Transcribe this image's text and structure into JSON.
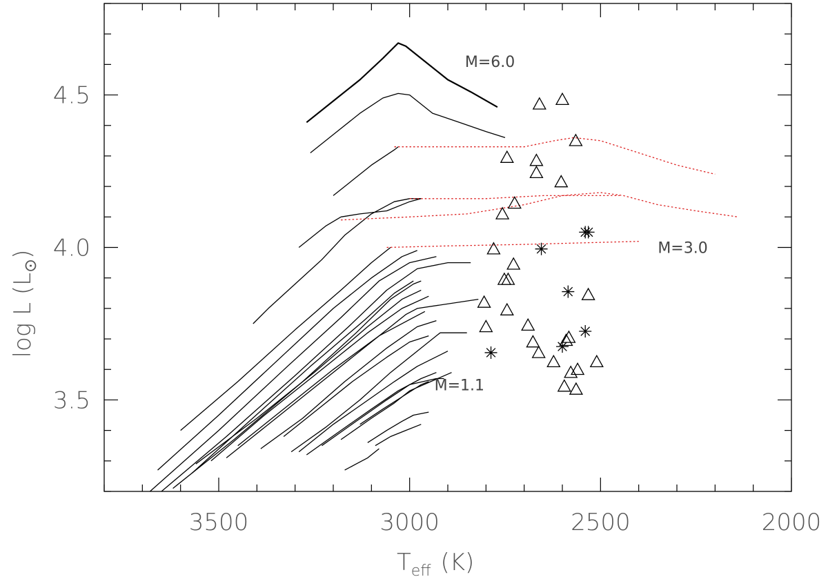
{
  "chart_data": {
    "type": "scatter",
    "title": "",
    "xlabel": "T",
    "xlabel_sub": "eff",
    "xlabel_unit": "(K)",
    "ylabel": "log L (L",
    "ylabel_sun": "⊙",
    "ylabel_close": ")",
    "xlim": [
      3800,
      2000
    ],
    "ylim": [
      3.2,
      4.8
    ],
    "x_ticks": [
      3500,
      3000,
      2500,
      2000
    ],
    "x_tick_labels": [
      "3500",
      "3000",
      "2500",
      "2000"
    ],
    "y_ticks": [
      3.5,
      4.0,
      4.5
    ],
    "y_tick_labels": [
      "3.5",
      "4.0",
      "4.5"
    ],
    "x_minor_step": 100,
    "y_minor_step": 0.1,
    "grid": false,
    "annotations": [
      {
        "text": "M=6.0",
        "x": 2855,
        "y": 4.61
      },
      {
        "text": "M=3.0",
        "x": 2350,
        "y": 4.0
      },
      {
        "text": "M=1.1",
        "x": 2935,
        "y": 3.55
      }
    ],
    "colors": {
      "tracks": "#000000",
      "tracks_extended": "#dd2222",
      "markers": "#000000"
    },
    "tracks": [
      {
        "points": [
          [
            3270,
            4.41
          ],
          [
            3200,
            4.48
          ],
          [
            3130,
            4.55
          ],
          [
            3070,
            4.62
          ],
          [
            3030,
            4.67
          ],
          [
            3010,
            4.66
          ],
          [
            2950,
            4.6
          ],
          [
            2900,
            4.55
          ],
          [
            2840,
            4.51
          ],
          [
            2770,
            4.46
          ]
        ],
        "width": 2.2
      },
      {
        "points": [
          [
            3260,
            4.31
          ],
          [
            3200,
            4.37
          ],
          [
            3130,
            4.44
          ],
          [
            3070,
            4.49
          ],
          [
            3030,
            4.505
          ],
          [
            3000,
            4.5
          ],
          [
            2940,
            4.44
          ],
          [
            2870,
            4.41
          ],
          [
            2800,
            4.38
          ],
          [
            2750,
            4.36
          ]
        ]
      },
      {
        "points": [
          [
            3200,
            4.17
          ],
          [
            3150,
            4.22
          ],
          [
            3100,
            4.27
          ],
          [
            3040,
            4.32
          ],
          [
            3030,
            4.33
          ]
        ]
      },
      {
        "points": [
          [
            3180,
            4.1
          ],
          [
            3130,
            4.11
          ],
          [
            3060,
            4.12
          ],
          [
            3000,
            4.15
          ],
          [
            2970,
            4.16
          ]
        ]
      },
      {
        "points": [
          [
            3290,
            4.0
          ],
          [
            3260,
            4.03
          ],
          [
            3220,
            4.07
          ],
          [
            3180,
            4.1
          ]
        ]
      },
      {
        "points": [
          [
            3410,
            3.75
          ],
          [
            3370,
            3.8
          ],
          [
            3300,
            3.88
          ],
          [
            3230,
            3.96
          ],
          [
            3170,
            4.04
          ],
          [
            3100,
            4.11
          ],
          [
            3040,
            4.15
          ],
          [
            3000,
            4.16
          ],
          [
            2970,
            4.16
          ]
        ]
      },
      {
        "points": [
          [
            3600,
            3.4
          ],
          [
            3450,
            3.56
          ],
          [
            3300,
            3.73
          ],
          [
            3180,
            3.86
          ],
          [
            3100,
            3.95
          ],
          [
            3050,
            4.0
          ]
        ]
      },
      {
        "points": [
          [
            3660,
            3.27
          ],
          [
            3500,
            3.45
          ],
          [
            3320,
            3.66
          ],
          [
            3200,
            3.8
          ],
          [
            3100,
            3.9
          ],
          [
            3020,
            3.97
          ],
          [
            2980,
            3.99
          ]
        ]
      },
      {
        "points": [
          [
            3680,
            3.2
          ],
          [
            3500,
            3.4
          ],
          [
            3320,
            3.61
          ],
          [
            3180,
            3.77
          ],
          [
            3080,
            3.89
          ],
          [
            3000,
            3.95
          ],
          [
            2930,
            3.97
          ]
        ]
      },
      {
        "points": [
          [
            3650,
            3.2
          ],
          [
            3480,
            3.38
          ],
          [
            3300,
            3.58
          ],
          [
            3160,
            3.74
          ],
          [
            3060,
            3.86
          ],
          [
            2980,
            3.93
          ],
          [
            2900,
            3.95
          ],
          [
            2840,
            3.95
          ]
        ]
      },
      {
        "points": [
          [
            3620,
            3.21
          ],
          [
            3460,
            3.37
          ],
          [
            3280,
            3.56
          ],
          [
            3140,
            3.72
          ],
          [
            3050,
            3.83
          ],
          [
            2990,
            3.88
          ],
          [
            2970,
            3.89
          ]
        ]
      },
      {
        "points": [
          [
            3570,
            3.26
          ],
          [
            3420,
            3.43
          ],
          [
            3260,
            3.61
          ],
          [
            3120,
            3.76
          ],
          [
            3040,
            3.85
          ],
          [
            2990,
            3.89
          ]
        ]
      },
      {
        "points": [
          [
            3560,
            3.29
          ],
          [
            3400,
            3.44
          ],
          [
            3250,
            3.59
          ],
          [
            3110,
            3.74
          ],
          [
            3020,
            3.83
          ],
          [
            2970,
            3.86
          ]
        ]
      },
      {
        "points": [
          [
            3520,
            3.3
          ],
          [
            3380,
            3.45
          ],
          [
            3240,
            3.59
          ],
          [
            3110,
            3.72
          ],
          [
            3020,
            3.8
          ],
          [
            2950,
            3.84
          ]
        ]
      },
      {
        "points": [
          [
            3480,
            3.31
          ],
          [
            3350,
            3.44
          ],
          [
            3220,
            3.57
          ],
          [
            3100,
            3.69
          ],
          [
            3010,
            3.78
          ],
          [
            2980,
            3.8
          ],
          [
            2820,
            3.83
          ]
        ]
      },
      {
        "points": [
          [
            3450,
            3.35
          ],
          [
            3320,
            3.48
          ],
          [
            3200,
            3.6
          ],
          [
            3080,
            3.71
          ],
          [
            2990,
            3.77
          ],
          [
            2960,
            3.79
          ]
        ]
      },
      {
        "points": [
          [
            3390,
            3.34
          ],
          [
            3280,
            3.44
          ],
          [
            3170,
            3.56
          ],
          [
            3060,
            3.67
          ],
          [
            2980,
            3.74
          ],
          [
            2930,
            3.76
          ]
        ]
      },
      {
        "points": [
          [
            3330,
            3.38
          ],
          [
            3240,
            3.47
          ],
          [
            3150,
            3.56
          ],
          [
            3060,
            3.64
          ],
          [
            3000,
            3.69
          ],
          [
            2950,
            3.71
          ]
        ]
      },
      {
        "points": [
          [
            3310,
            3.33
          ],
          [
            3220,
            3.41
          ],
          [
            3130,
            3.5
          ],
          [
            3050,
            3.59
          ],
          [
            2980,
            3.66
          ],
          [
            2920,
            3.72
          ],
          [
            2850,
            3.72
          ]
        ]
      },
      {
        "points": [
          [
            3290,
            3.33
          ],
          [
            3200,
            3.42
          ],
          [
            3120,
            3.49
          ],
          [
            3040,
            3.56
          ],
          [
            2980,
            3.61
          ],
          [
            2900,
            3.66
          ]
        ]
      },
      {
        "points": [
          [
            3270,
            3.32
          ],
          [
            3180,
            3.4
          ],
          [
            3100,
            3.47
          ],
          [
            3030,
            3.53
          ],
          [
            2970,
            3.57
          ],
          [
            2930,
            3.59
          ]
        ]
      },
      {
        "points": [
          [
            3230,
            3.35
          ],
          [
            3140,
            3.43
          ],
          [
            3060,
            3.5
          ],
          [
            3000,
            3.55
          ],
          [
            2930,
            3.57
          ],
          [
            2910,
            3.57
          ]
        ]
      },
      {
        "points": [
          [
            3180,
            3.37
          ],
          [
            3100,
            3.44
          ],
          [
            3040,
            3.49
          ],
          [
            3000,
            3.53
          ],
          [
            2890,
            3.59
          ]
        ]
      },
      {
        "points": [
          [
            3130,
            3.42
          ],
          [
            3070,
            3.47
          ],
          [
            3020,
            3.51
          ],
          [
            2970,
            3.55
          ],
          [
            2950,
            3.56
          ]
        ]
      },
      {
        "points": [
          [
            3110,
            3.36
          ],
          [
            3060,
            3.4
          ],
          [
            3020,
            3.43
          ],
          [
            2990,
            3.45
          ],
          [
            2950,
            3.46
          ]
        ]
      },
      {
        "points": [
          [
            3090,
            3.35
          ],
          [
            3050,
            3.38
          ],
          [
            3010,
            3.4
          ],
          [
            2970,
            3.42
          ]
        ]
      },
      {
        "points": [
          [
            3170,
            3.27
          ],
          [
            3140,
            3.29
          ],
          [
            3110,
            3.31
          ],
          [
            3080,
            3.34
          ]
        ]
      }
    ],
    "extended_tracks": [
      {
        "points": [
          [
            3040,
            4.33
          ],
          [
            2850,
            4.33
          ],
          [
            2700,
            4.33
          ],
          [
            2620,
            4.35
          ],
          [
            2570,
            4.36
          ],
          [
            2500,
            4.35
          ],
          [
            2400,
            4.31
          ],
          [
            2300,
            4.27
          ],
          [
            2200,
            4.24
          ]
        ]
      },
      {
        "points": [
          [
            3180,
            4.09
          ],
          [
            3000,
            4.1
          ],
          [
            2850,
            4.11
          ],
          [
            2700,
            4.14
          ],
          [
            2600,
            4.17
          ],
          [
            2500,
            4.18
          ],
          [
            2440,
            4.17
          ],
          [
            2350,
            4.14
          ],
          [
            2250,
            4.12
          ],
          [
            2140,
            4.1
          ]
        ]
      },
      {
        "points": [
          [
            3000,
            4.16
          ],
          [
            2800,
            4.16
          ],
          [
            2650,
            4.17
          ],
          [
            2500,
            4.17
          ],
          [
            2450,
            4.17
          ]
        ]
      },
      {
        "points": [
          [
            3060,
            4.0
          ],
          [
            2900,
            4.005
          ],
          [
            2700,
            4.01
          ],
          [
            2550,
            4.015
          ],
          [
            2400,
            4.02
          ]
        ]
      }
    ],
    "triangles": [
      [
        2660,
        4.47
      ],
      [
        2600,
        4.485
      ],
      [
        2565,
        4.35
      ],
      [
        2745,
        4.295
      ],
      [
        2668,
        4.285
      ],
      [
        2668,
        4.245
      ],
      [
        2603,
        4.215
      ],
      [
        2725,
        4.145
      ],
      [
        2757,
        4.11
      ],
      [
        2780,
        3.995
      ],
      [
        2728,
        3.945
      ],
      [
        2752,
        3.895
      ],
      [
        2742,
        3.895
      ],
      [
        2805,
        3.82
      ],
      [
        2745,
        3.795
      ],
      [
        2800,
        3.74
      ],
      [
        2690,
        3.745
      ],
      [
        2677,
        3.69
      ],
      [
        2662,
        3.655
      ],
      [
        2583,
        3.705
      ],
      [
        2590,
        3.695
      ],
      [
        2532,
        3.845
      ],
      [
        2623,
        3.625
      ],
      [
        2510,
        3.625
      ],
      [
        2578,
        3.59
      ],
      [
        2560,
        3.6
      ],
      [
        2595,
        3.545
      ],
      [
        2564,
        3.535
      ]
    ],
    "stars": [
      [
        2655,
        3.995
      ],
      [
        2540,
        4.05
      ],
      [
        2532,
        4.05
      ],
      [
        2585,
        3.855
      ],
      [
        2540,
        3.725
      ],
      [
        2600,
        3.675
      ],
      [
        2787,
        3.655
      ]
    ]
  }
}
